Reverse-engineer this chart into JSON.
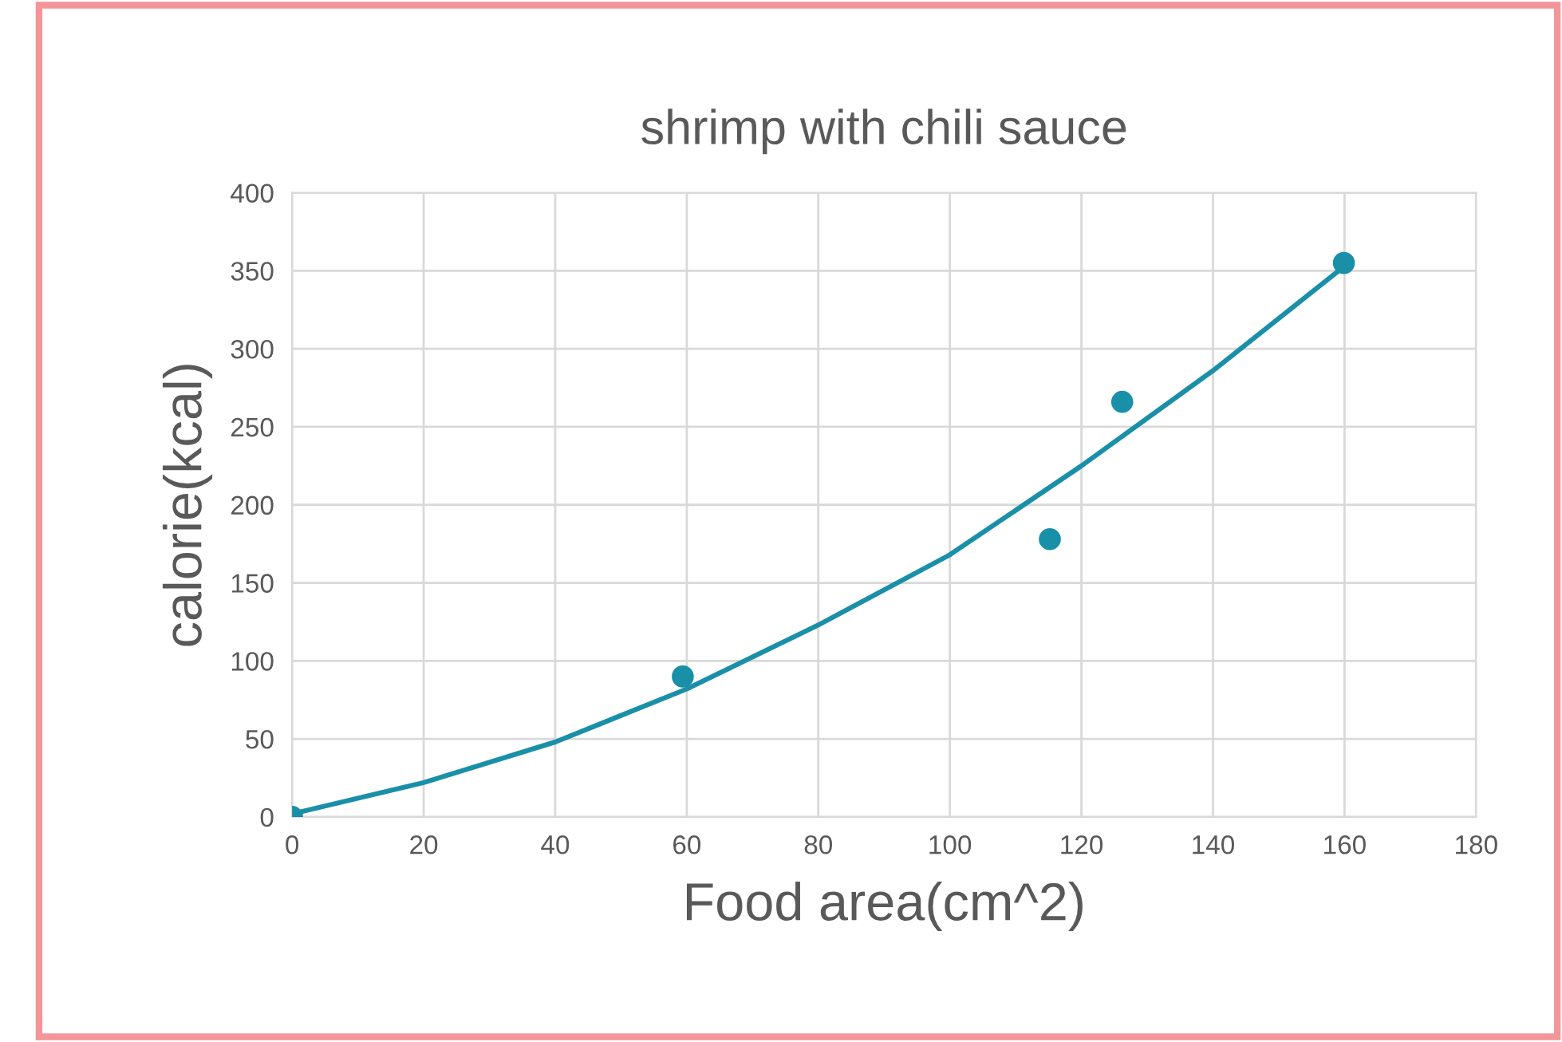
{
  "chart_data": {
    "type": "scatter",
    "title": "shrimp with chili sauce",
    "xlabel": "Food area(cm^2)",
    "ylabel": "calorie(kcal)",
    "series": [
      {
        "color": "#1a8fa8",
        "x": [
          0,
          59.4,
          115.2,
          126.2,
          159.9
        ],
        "values": [
          0,
          90,
          178,
          266,
          355
        ],
        "marker": "circle"
      },
      {
        "type": "line",
        "color": "#1a8fa8",
        "x": [
          0,
          20,
          40,
          60,
          80,
          100,
          120,
          140,
          160
        ],
        "values": [
          2,
          22,
          48,
          82,
          123,
          168,
          225,
          286,
          353
        ],
        "marker": "none",
        "line_style": "solid"
      }
    ],
    "xlim": [
      0,
      180
    ],
    "xticks": [
      0,
      20,
      40,
      60,
      80,
      100,
      120,
      140,
      160,
      180
    ],
    "ylim": [
      0,
      400
    ],
    "yticks": [
      0,
      50,
      100,
      150,
      200,
      250,
      300,
      350,
      400
    ],
    "grid": true,
    "legend": false
  }
}
